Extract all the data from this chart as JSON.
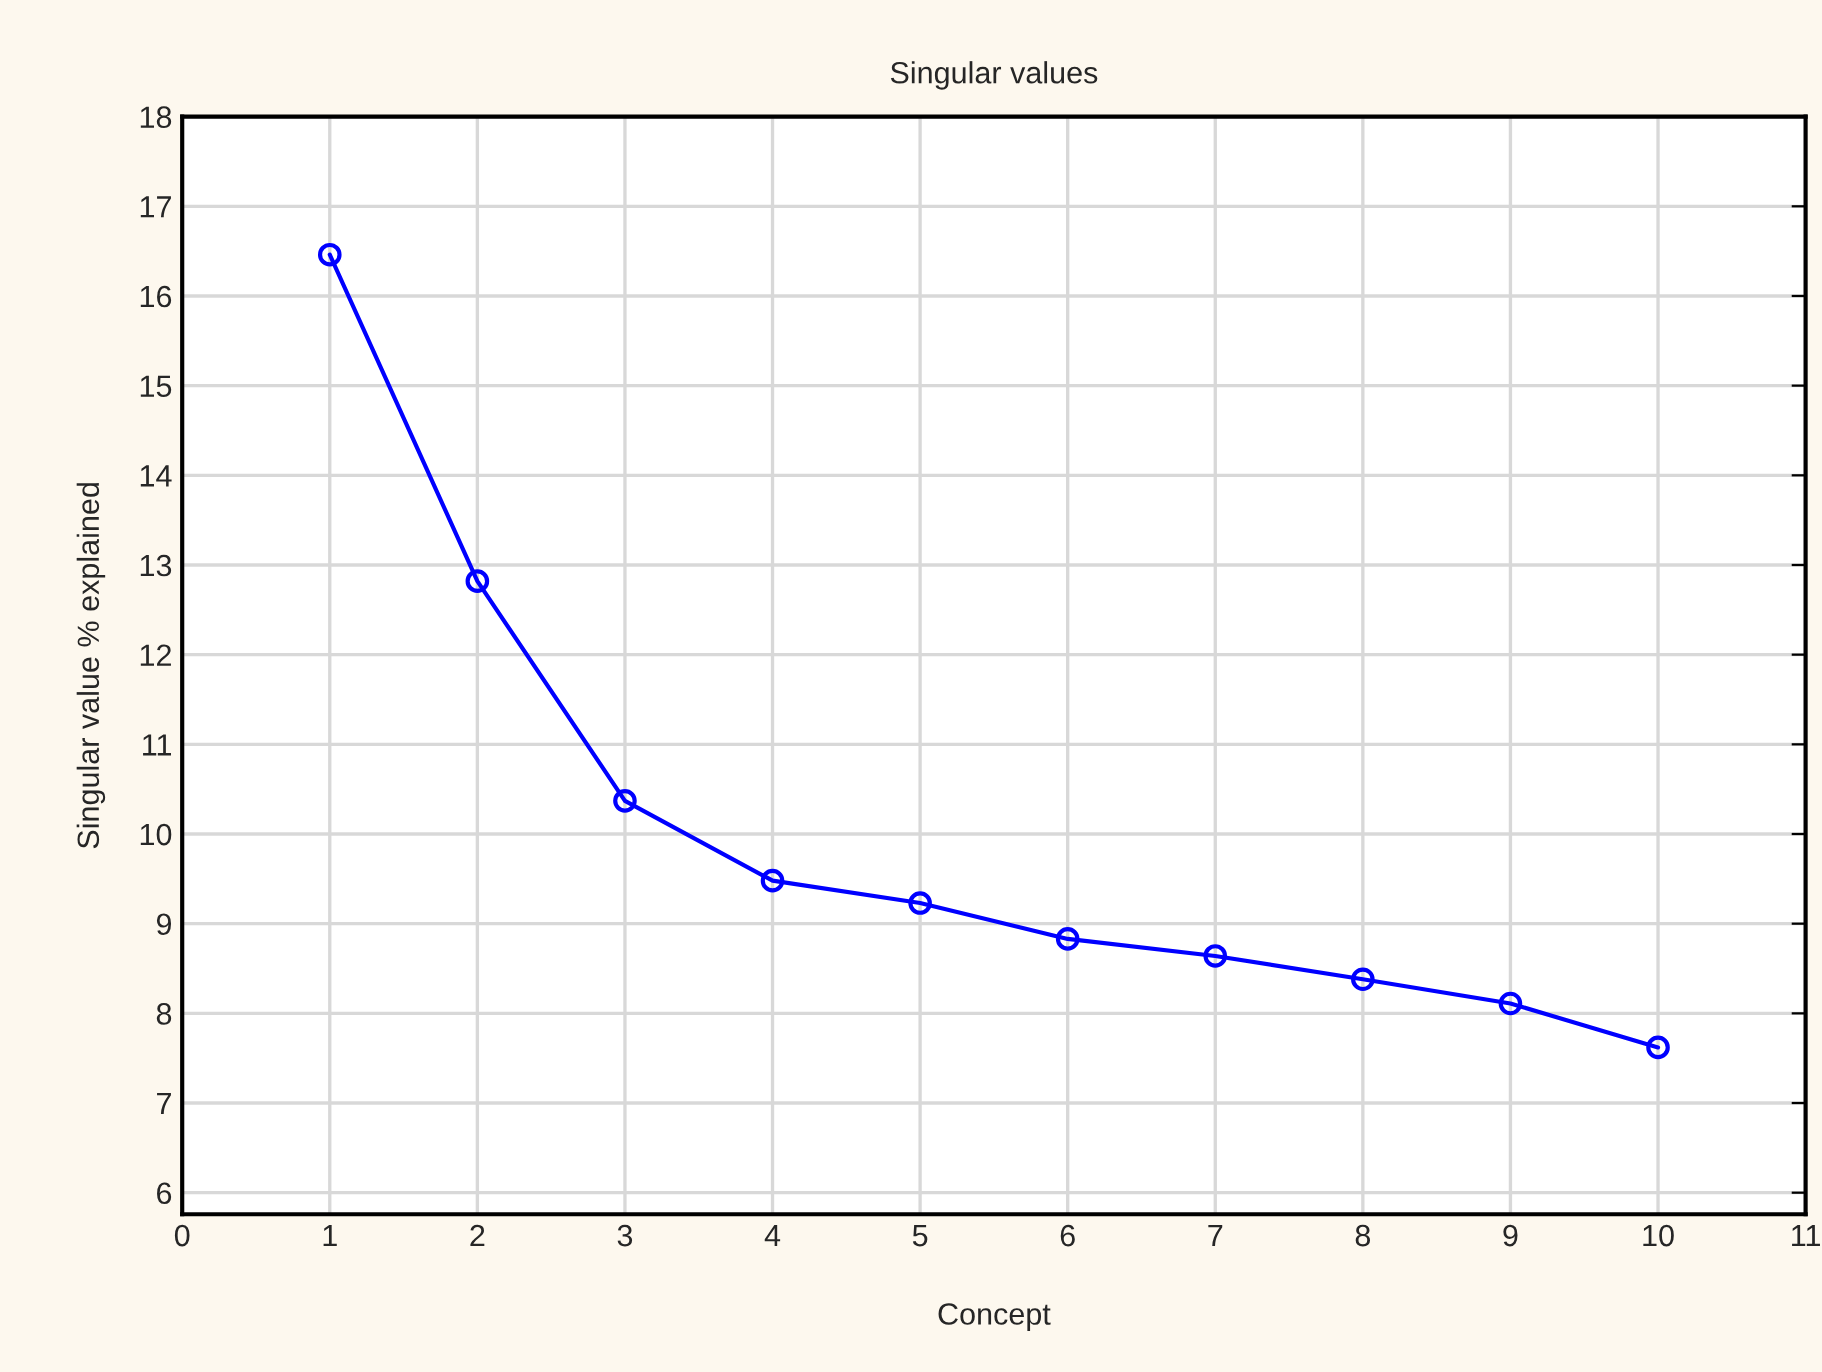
{
  "chart_data": {
    "type": "line",
    "title": "Singular values",
    "xlabel": "Concept",
    "ylabel": "Singular value % explained",
    "x": [
      1,
      2,
      3,
      4,
      5,
      6,
      7,
      8,
      9,
      10
    ],
    "series": [
      {
        "color": "#0000ff",
        "values": [
          16.46,
          12.82,
          10.37,
          9.48,
          9.23,
          8.83,
          8.64,
          8.38,
          8.11,
          7.62
        ]
      }
    ],
    "xlim": [
      0,
      11
    ],
    "xticks": [
      0,
      1,
      2,
      3,
      4,
      5,
      6,
      7,
      8,
      9,
      10,
      11
    ],
    "ylim": [
      5.76,
      18
    ],
    "yticks": [
      6,
      7,
      8,
      9,
      10,
      11,
      12,
      13,
      14,
      15,
      16,
      17,
      18
    ],
    "grid": true,
    "marker": "circle",
    "line_style": "solid"
  }
}
